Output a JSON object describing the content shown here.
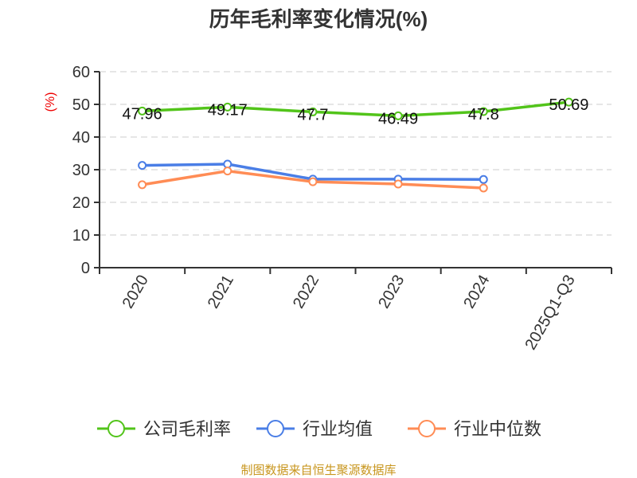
{
  "chart_data": {
    "type": "line",
    "title": "历年毛利率变化情况(%)",
    "ylabel": "(%)",
    "ylim": [
      0,
      60
    ],
    "yticks": [
      0,
      10,
      20,
      30,
      40,
      50,
      60
    ],
    "grid": true,
    "categories": [
      "2020",
      "2021",
      "2022",
      "2023",
      "2024",
      "2025Q1-Q3"
    ],
    "series": [
      {
        "name": "公司毛利率",
        "color": "#52c41a",
        "values": [
          47.96,
          49.17,
          47.7,
          46.49,
          47.8,
          50.69
        ],
        "labels": [
          "47.96",
          "49.17",
          "47.7",
          "46.49",
          "47.8",
          "50.69"
        ]
      },
      {
        "name": "行业均值",
        "color": "#4a7ee6",
        "values": [
          31.3,
          31.7,
          27.1,
          27.1,
          27.0,
          null
        ]
      },
      {
        "name": "行业中位数",
        "color": "#ff8c55",
        "values": [
          25.4,
          29.6,
          26.3,
          25.6,
          24.4,
          null
        ]
      }
    ],
    "legend_position": "bottom",
    "source": "制图数据来自恒生聚源数据库"
  }
}
